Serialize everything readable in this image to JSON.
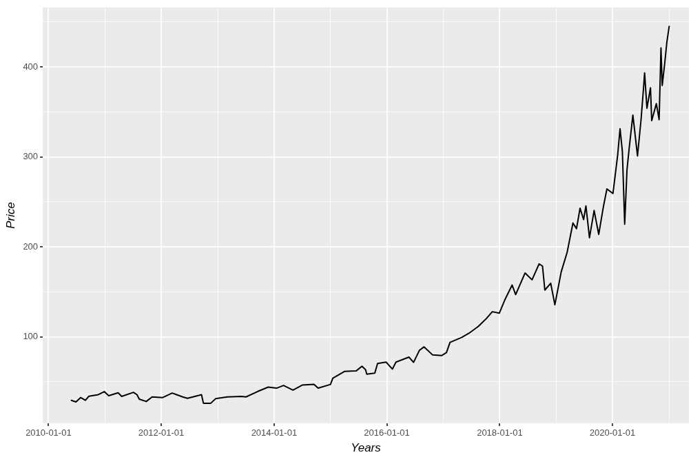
{
  "chart_data": {
    "type": "line",
    "xlabel": "Years",
    "ylabel": "Price",
    "grid": true,
    "legend": false,
    "marker": "none",
    "line_style": "solid",
    "xlim": [
      "2009-11-25",
      "2021-05-10"
    ],
    "ylim": [
      4,
      466
    ],
    "xticks": [
      {
        "value": "2010-01-01",
        "label": "2010-01-01"
      },
      {
        "value": "2011-01-01",
        "label": null
      },
      {
        "value": "2012-01-01",
        "label": "2012-01-01"
      },
      {
        "value": "2013-01-01",
        "label": null
      },
      {
        "value": "2014-01-01",
        "label": "2014-01-01"
      },
      {
        "value": "2015-01-01",
        "label": null
      },
      {
        "value": "2016-01-01",
        "label": "2016-01-01"
      },
      {
        "value": "2017-01-01",
        "label": null
      },
      {
        "value": "2018-01-01",
        "label": "2018-01-01"
      },
      {
        "value": "2019-01-01",
        "label": null
      },
      {
        "value": "2020-01-01",
        "label": "2020-01-01"
      },
      {
        "value": "2021-01-01",
        "label": null
      }
    ],
    "yticks": [
      {
        "value": 50,
        "label": null
      },
      100,
      {
        "value": 150,
        "label": null
      },
      200,
      {
        "value": 250,
        "label": null
      },
      300,
      {
        "value": 350,
        "label": null
      },
      400,
      {
        "value": 450,
        "label": null
      }
    ],
    "x": [
      "2010-05-29",
      "2010-06-28",
      "2010-07-28",
      "2010-08-28",
      "2010-09-20",
      "2010-11-20",
      "2010-12-28",
      "2011-01-26",
      "2011-03-28",
      "2011-04-20",
      "2011-07-05",
      "2011-07-28",
      "2011-08-12",
      "2011-09-26",
      "2011-11-03",
      "2012-01-11",
      "2012-03-12",
      "2012-05-19",
      "2012-06-19",
      "2012-09-18",
      "2012-09-30",
      "2012-11-17",
      "2012-12-18",
      "2013-03-04",
      "2013-06-03",
      "2013-07-03",
      "2013-09-17",
      "2013-11-24",
      "2014-01-16",
      "2014-03-03",
      "2014-05-03",
      "2014-07-02",
      "2014-09-16",
      "2014-10-13",
      "2015-01-01",
      "2015-01-16",
      "2015-04-01",
      "2015-06-17",
      "2015-07-24",
      "2015-08-16",
      "2015-08-24",
      "2015-10-15",
      "2015-11-02",
      "2015-12-27",
      "2016-02-06",
      "2016-02-29",
      "2016-05-23",
      "2016-06-22",
      "2016-07-30",
      "2016-08-29",
      "2016-10-22",
      "2016-12-22",
      "2017-01-21",
      "2017-02-13",
      "2017-04-30",
      "2017-06-15",
      "2017-08-15",
      "2017-10-07",
      "2017-11-14",
      "2017-12-29",
      "2018-02-05",
      "2018-03-22",
      "2018-04-14",
      "2018-06-14",
      "2018-07-29",
      "2018-09-13",
      "2018-10-05",
      "2018-10-20",
      "2018-11-27",
      "2018-12-24",
      "2019-02-03",
      "2019-03-13",
      "2019-04-20",
      "2019-05-13",
      "2019-06-05",
      "2019-06-28",
      "2019-07-13",
      "2019-08-05",
      "2019-09-04",
      "2019-10-04",
      "2019-11-04",
      "2019-11-26",
      "2020-01-04",
      "2020-02-03",
      "2020-02-19",
      "2020-03-05",
      "2020-03-20",
      "2020-04-04",
      "2020-04-19",
      "2020-05-12",
      "2020-06-11",
      "2020-07-04",
      "2020-07-19",
      "2020-07-27",
      "2020-08-11",
      "2020-09-03",
      "2020-09-11",
      "2020-10-11",
      "2020-10-29",
      "2020-11-10",
      "2020-11-18",
      "2020-12-03",
      "2020-12-18",
      "2021-01-02"
    ],
    "series": [
      {
        "color": "#000000",
        "values": [
          29.5,
          27.8,
          32.6,
          29.5,
          34.1,
          35.8,
          39.2,
          34.6,
          37.9,
          33.9,
          38.4,
          35.8,
          30.8,
          28.2,
          33.3,
          32.6,
          37.6,
          33.3,
          31.8,
          35.8,
          26.3,
          26.3,
          31.3,
          33.3,
          33.9,
          33.3,
          39.4,
          44.2,
          43.0,
          46.0,
          40.9,
          46.5,
          47.2,
          43.0,
          47.2,
          54.0,
          61.6,
          62.3,
          67.4,
          63.6,
          58.6,
          59.8,
          70.5,
          72.0,
          64.2,
          72.0,
          77.5,
          71.7,
          85.1,
          88.9,
          80.1,
          79.3,
          82.6,
          93.9,
          99.5,
          104.0,
          111.6,
          120.5,
          128.0,
          126.3,
          141.9,
          157.6,
          147.0,
          171.0,
          163.4,
          181.1,
          178.6,
          152.0,
          159.6,
          135.6,
          172.2,
          193.7,
          226.5,
          220.3,
          243.0,
          230.3,
          245.5,
          210.1,
          240.4,
          213.9,
          245.5,
          264.4,
          259.3,
          301.0,
          331.3,
          306.1,
          225.2,
          285.8,
          311.1,
          346.4,
          301.0,
          341.4,
          374.2,
          393.2,
          354.0,
          376.7,
          340.2,
          359.1,
          341.4,
          421.0,
          379.3,
          402.0,
          427.3,
          445.0
        ]
      }
    ]
  }
}
